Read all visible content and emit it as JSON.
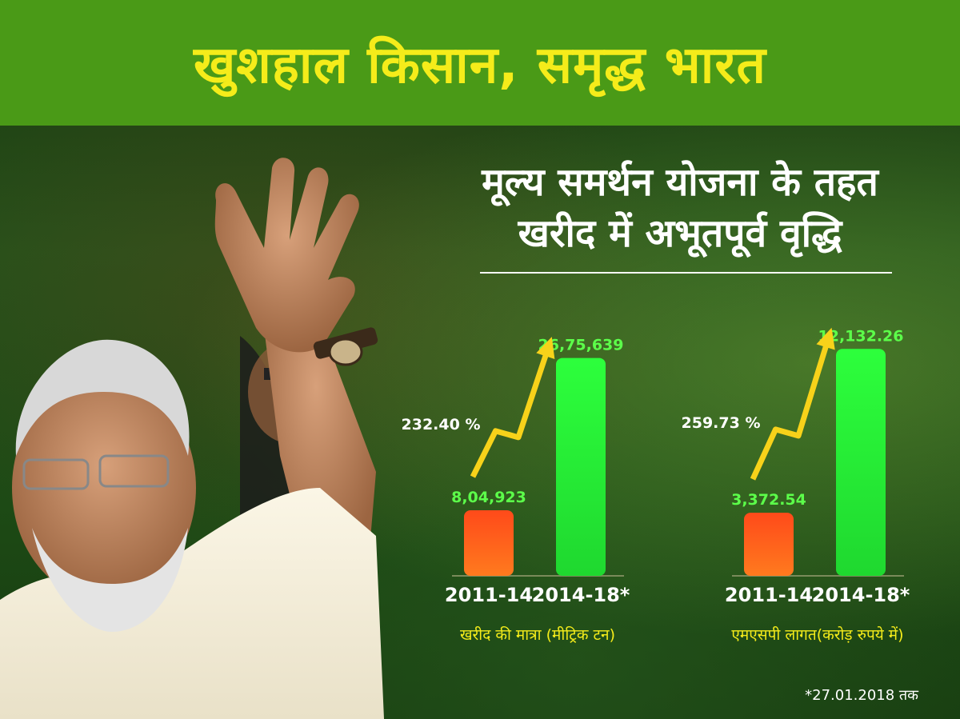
{
  "header": {
    "title": "खुशहाल किसान, समृद्ध भारत"
  },
  "headline": {
    "line1": "मूल्य समर्थन योजना के तहत",
    "line2": "खरीद में अभूतपूर्व वृद्धि"
  },
  "footnote": "*27.01.2018 तक",
  "colors": {
    "banner": "#4a9a17",
    "title": "#f5ec1a",
    "bar_old": "#ff5a1e",
    "bar_new": "#2dff3c",
    "arrow": "#f7d21a"
  },
  "chart_data": [
    {
      "type": "bar",
      "categories": [
        "2011-14",
        "2014-18*"
      ],
      "values": [
        804923,
        2675639
      ],
      "value_labels": [
        "8,04,923",
        "26,75,639"
      ],
      "growth_label": "232.40 %",
      "xlabel": "खरीद की मात्रा (मीट्रिक टन)",
      "ylim": [
        0,
        2750000
      ]
    },
    {
      "type": "bar",
      "categories": [
        "2011-14",
        "2014-18*"
      ],
      "values": [
        3372.54,
        12132.26
      ],
      "value_labels": [
        "3,372.54",
        "12,132.26"
      ],
      "growth_label": "259.73 %",
      "xlabel": "एमएसपी लागत(करोड़ रुपये में)",
      "ylim": [
        0,
        12400
      ]
    }
  ]
}
